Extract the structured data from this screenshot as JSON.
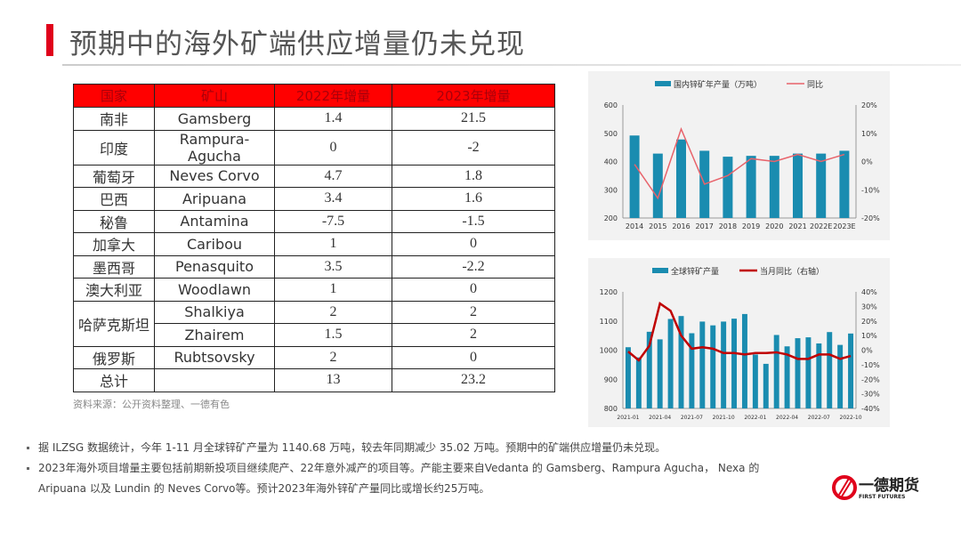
{
  "title": "预期中的海外矿端供应增量仍未兑现",
  "table": {
    "headers": [
      "国家",
      "矿山",
      "2022年增量",
      "2023年增量"
    ],
    "rows": [
      [
        "南非",
        "Gamsberg",
        "1.4",
        "21.5"
      ],
      [
        "印度",
        "Rampura-Agucha",
        "0",
        "-2"
      ],
      [
        "葡萄牙",
        "Neves Corvo",
        "4.7",
        "1.8"
      ],
      [
        "巴西",
        "Aripuana",
        "3.4",
        "1.6"
      ],
      [
        "秘鲁",
        "Antamina",
        "-7.5",
        "-1.5"
      ],
      [
        "加拿大",
        "Caribou",
        "1",
        "0"
      ],
      [
        "墨西哥",
        "Penasquito",
        "3.5",
        "-2.2"
      ],
      [
        "澳大利亚",
        "Woodlawn",
        "1",
        "0"
      ],
      [
        "哈萨克斯坦",
        "Shalkiya",
        "2",
        "2"
      ],
      [
        "",
        "Zhairem",
        "1.5",
        "2"
      ],
      [
        "俄罗斯",
        "Rubtsovsky",
        "2",
        "0"
      ],
      [
        "总计",
        "",
        "13",
        "23.2"
      ]
    ]
  },
  "source": "资料来源：公开资料整理、一德有色",
  "bullets": [
    "据 ILZSG 数据统计，今年 1-11 月全球锌矿产量为 1140.68 万吨，较去年同期减少 35.02 万吨。预期中的矿端供应增量仍未兑现。",
    "2023年海外项目增量主要包括前期新投项目继续爬产、22年意外减产的项目等。产能主要来自Vedanta 的  Gamsberg、Rampura  Agucha，  Nexa 的",
    "Aripuana 以及 Lundin 的 Neves Corvo等。预计2023年海外锌矿产量同比或增长约25万吨。"
  ],
  "logo": {
    "name": "一德期货",
    "en": "FIRST FUTURES"
  },
  "chart_data": [
    {
      "type": "bar+line",
      "categories": [
        "2014",
        "2015",
        "2016",
        "2017",
        "2018",
        "2019",
        "2020",
        "2021",
        "2022E",
        "2023E"
      ],
      "series": [
        {
          "name": "国内锌矿年产量（万吨）",
          "type": "bar",
          "axis": "left",
          "color": "#1a8cb0",
          "values": [
            492,
            428,
            478,
            438,
            417,
            420,
            420,
            428,
            428,
            438
          ]
        },
        {
          "name": "同比",
          "type": "line",
          "axis": "right",
          "color": "#e8636b",
          "values": [
            -1,
            -13,
            11.5,
            -8,
            -5,
            1,
            0,
            2.5,
            0,
            2.5
          ]
        }
      ],
      "yticks": [
        "600",
        "500",
        "400",
        "300",
        "200"
      ],
      "ylim": [
        200,
        600
      ],
      "y2ticks": [
        "20%",
        "10%",
        "0%",
        "-10%",
        "-20%"
      ],
      "y2lim": [
        -20,
        20
      ],
      "legend": "top"
    },
    {
      "type": "bar+line",
      "categories": [
        "2021-01",
        "2021-02",
        "2021-03",
        "2021-04",
        "2021-05",
        "2021-06",
        "2021-07",
        "2021-08",
        "2021-09",
        "2021-10",
        "2021-11",
        "2021-12",
        "2022-01",
        "2022-02",
        "2022-03",
        "2022-04",
        "2022-05",
        "2022-06",
        "2022-07",
        "2022-08",
        "2022-09",
        "2022-10"
      ],
      "xticks": [
        "2021-01",
        "2021-04",
        "2021-07",
        "2021-10",
        "2022-01",
        "2022-04",
        "2022-07",
        "2022-10"
      ],
      "series": [
        {
          "name": "全球锌矿产量",
          "type": "bar",
          "axis": "left",
          "color": "#1a8cb0",
          "values": [
            1010,
            975,
            1063,
            1037,
            1107,
            1117,
            1058,
            1098,
            1085,
            1098,
            1108,
            1124,
            985,
            953,
            1052,
            1013,
            1041,
            1044,
            1023,
            1062,
            1018,
            1057
          ]
        },
        {
          "name": "当月同比（右轴）",
          "type": "line",
          "axis": "right",
          "color": "#c00000",
          "values": [
            -1,
            -7,
            3,
            32,
            27,
            10,
            1,
            2,
            1,
            -2,
            -2,
            -3,
            -2,
            -2,
            -1.5,
            -3,
            -6,
            -6,
            -3,
            -3,
            -6,
            -4
          ]
        }
      ],
      "yticks": [
        "1200",
        "1100",
        "1000",
        "900",
        "800"
      ],
      "ylim": [
        800,
        1200
      ],
      "y2ticks": [
        "40%",
        "30%",
        "20%",
        "10%",
        "0%",
        "-10%",
        "-20%",
        "-30%",
        "-40%"
      ],
      "y2lim": [
        -40,
        40
      ],
      "legend": "top"
    }
  ]
}
